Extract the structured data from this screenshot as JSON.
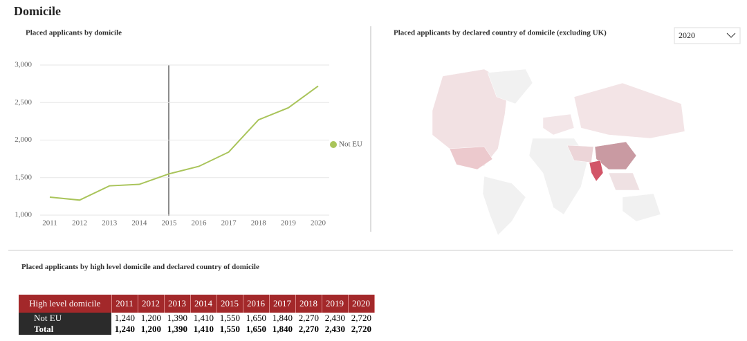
{
  "title": "Domicile",
  "chart_data": {
    "type": "line",
    "title": "Placed applicants by domicile",
    "categories": [
      "2011",
      "2012",
      "2013",
      "2014",
      "2015",
      "2016",
      "2017",
      "2018",
      "2019",
      "2020"
    ],
    "series": [
      {
        "name": "Not EU",
        "color": "#a9c45a",
        "values": [
          1240,
          1200,
          1390,
          1410,
          1550,
          1650,
          1840,
          2270,
          2430,
          2720
        ]
      }
    ],
    "ylim": [
      1000,
      3000
    ],
    "yticks": [
      {
        "value": 1000,
        "label": "1,000"
      },
      {
        "value": 1500,
        "label": "1,500"
      },
      {
        "value": 2000,
        "label": "2,000"
      },
      {
        "value": 2500,
        "label": "2,500"
      },
      {
        "value": 3000,
        "label": "3,000"
      }
    ],
    "grid": true,
    "legend": "right"
  },
  "map": {
    "title": "Placed applicants by declared country of domicile (excluding UK)",
    "dropdown": "2020"
  },
  "table": {
    "title": "Placed applicants by high level domicile and declared country of domicile",
    "header": [
      "High level domicile",
      "2011",
      "2012",
      "2013",
      "2014",
      "2015",
      "2016",
      "2017",
      "2018",
      "2019",
      "2020"
    ],
    "rows": [
      [
        "Not EU",
        "1,240",
        "1,200",
        "1,390",
        "1,410",
        "1,550",
        "1,650",
        "1,840",
        "2,270",
        "2,430",
        "2,720"
      ],
      [
        "Total",
        "1,240",
        "1,200",
        "1,390",
        "1,410",
        "1,550",
        "1,650",
        "1,840",
        "2,270",
        "2,430",
        "2,720"
      ]
    ]
  }
}
